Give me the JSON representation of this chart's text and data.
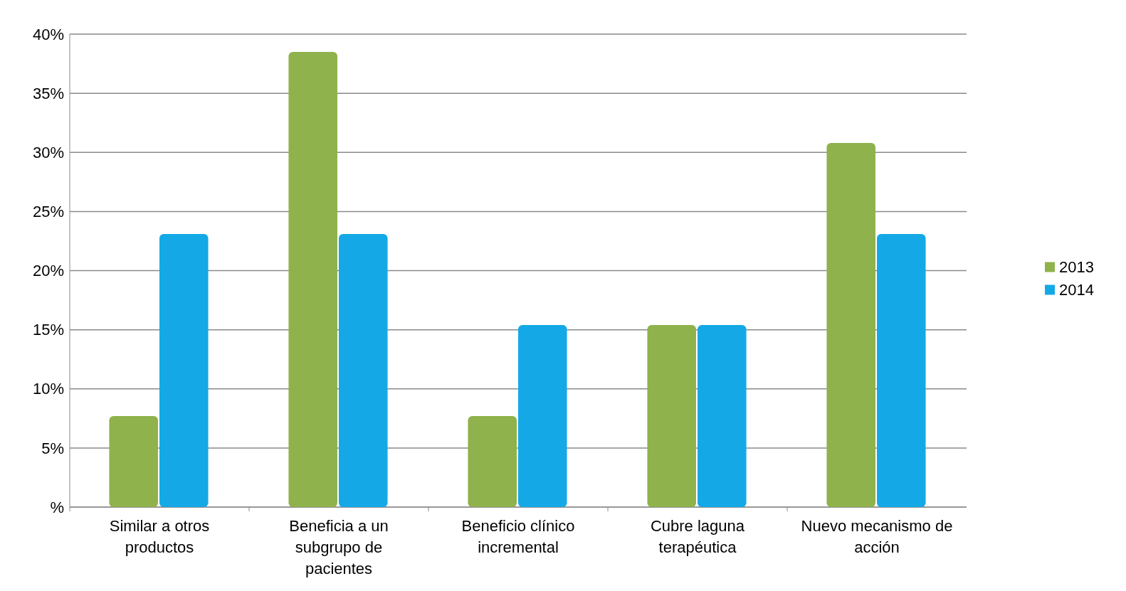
{
  "chart_data": {
    "type": "bar",
    "categories": [
      "Similar a otros productos",
      "Beneficia a un subgrupo de pacientes",
      "Beneficio clínico incremental",
      "Cubre laguna terapéutica",
      "Nuevo mecanismo de acción"
    ],
    "series": [
      {
        "name": "2013",
        "color": "#8fb24c",
        "values": [
          7.7,
          38.5,
          7.7,
          15.4,
          30.8
        ]
      },
      {
        "name": "2014",
        "color": "#14a9e6",
        "values": [
          23.1,
          23.1,
          15.4,
          15.4,
          23.1
        ]
      }
    ],
    "ylim": [
      0,
      40
    ],
    "yticks": [
      {
        "value": 0,
        "label": "%"
      },
      {
        "value": 5,
        "label": "5%"
      },
      {
        "value": 10,
        "label": "10%"
      },
      {
        "value": 15,
        "label": "15%"
      },
      {
        "value": 20,
        "label": "20%"
      },
      {
        "value": 25,
        "label": "25%"
      },
      {
        "value": 30,
        "label": "30%"
      },
      {
        "value": 35,
        "label": "35%"
      },
      {
        "value": 40,
        "label": "40%"
      }
    ],
    "grid": true,
    "legend": "right"
  }
}
